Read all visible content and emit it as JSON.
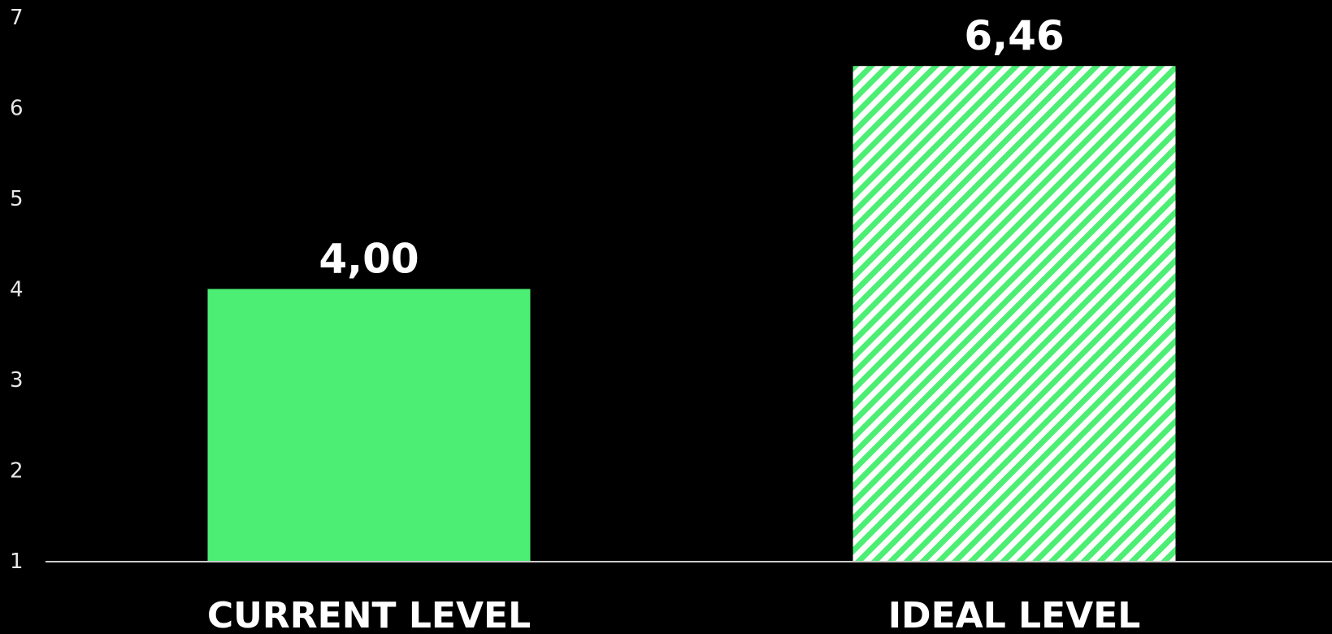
{
  "chart_data": {
    "type": "bar",
    "categories": [
      "CURRENT LEVEL",
      "IDEAL LEVEL"
    ],
    "values": [
      4.0,
      6.46
    ],
    "value_labels": [
      "4,00",
      "6,46"
    ],
    "bar_fills": [
      "solid",
      "hatched"
    ],
    "ylim": [
      1,
      7
    ],
    "yticks": [
      1,
      2,
      3,
      4,
      5,
      6,
      7
    ],
    "grid": false,
    "legend": "none",
    "colors": {
      "background": "#000000",
      "bar": "#4cee74",
      "hatch_background": "#ffffff",
      "axis": "#cccccc",
      "text": "#ffffff"
    }
  }
}
